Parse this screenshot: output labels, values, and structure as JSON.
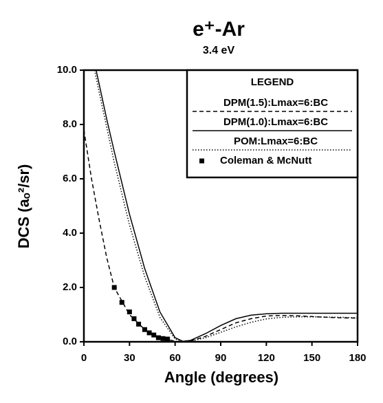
{
  "chart_data": {
    "type": "line",
    "title": "e⁺-Ar",
    "subtitle": "3.4 eV",
    "x_label": "Angle (degrees)",
    "y_label": "DCS (aₒ²/sr)",
    "legend_title": "LEGEND",
    "legend": "upper right",
    "xlim": [
      0,
      180
    ],
    "xticks": [
      0,
      30,
      60,
      90,
      120,
      150,
      180
    ],
    "ylim": [
      0,
      10
    ],
    "yticks": [
      {
        "value": 0,
        "label": "0.0"
      },
      {
        "value": 2,
        "label": "2.0"
      },
      {
        "value": 4,
        "label": "4.0"
      },
      {
        "value": 6,
        "label": "6.0"
      },
      {
        "value": 8,
        "label": "8.0"
      },
      {
        "value": 10,
        "label": "10.0"
      }
    ],
    "series": [
      {
        "name": "DPM(1.5):Lmax=6:BC",
        "color": "#000000",
        "style": "dashed",
        "x": [
          0,
          5,
          10,
          15,
          20,
          30,
          40,
          50,
          60,
          65,
          70,
          80,
          90,
          100,
          110,
          120,
          130,
          140,
          150,
          160,
          170,
          180
        ],
        "values": [
          7.8,
          6.0,
          4.5,
          3.1,
          2.0,
          1.0,
          0.45,
          0.15,
          0.02,
          0,
          0.03,
          0.2,
          0.45,
          0.7,
          0.85,
          0.95,
          0.97,
          0.96,
          0.93,
          0.9,
          0.88,
          0.87
        ]
      },
      {
        "name": "DPM(1.0):Lmax=6:BC",
        "color": "#000000",
        "style": "solid",
        "x": [
          8,
          10,
          15,
          20,
          30,
          40,
          50,
          60,
          65,
          70,
          80,
          90,
          100,
          110,
          120,
          130,
          140,
          150,
          160,
          170,
          180
        ],
        "values": [
          10,
          9.5,
          8.2,
          7.0,
          4.7,
          2.7,
          1.1,
          0.15,
          0.02,
          0.05,
          0.3,
          0.6,
          0.85,
          0.98,
          1.03,
          1.05,
          1.05,
          1.05,
          1.05,
          1.05,
          1.05
        ]
      },
      {
        "name": "POM:Lmax=6:BC",
        "color": "#000000",
        "style": "dotted",
        "x": [
          7,
          10,
          15,
          20,
          30,
          40,
          50,
          60,
          65,
          70,
          80,
          90,
          100,
          110,
          120,
          130,
          140,
          150,
          160,
          170,
          180
        ],
        "values": [
          10,
          9.2,
          7.9,
          6.6,
          4.3,
          2.4,
          0.9,
          0.1,
          0.02,
          0.02,
          0.15,
          0.35,
          0.55,
          0.72,
          0.84,
          0.9,
          0.92,
          0.92,
          0.91,
          0.9,
          0.88
        ]
      },
      {
        "name": "Coleman & McNutt",
        "color": "#000000",
        "style": "markers",
        "x": [
          20,
          25,
          30,
          33,
          36,
          40,
          43,
          46,
          49,
          52,
          55
        ],
        "values": [
          2.0,
          1.45,
          1.1,
          0.85,
          0.65,
          0.45,
          0.33,
          0.25,
          0.15,
          0.12,
          0.1
        ]
      }
    ]
  }
}
